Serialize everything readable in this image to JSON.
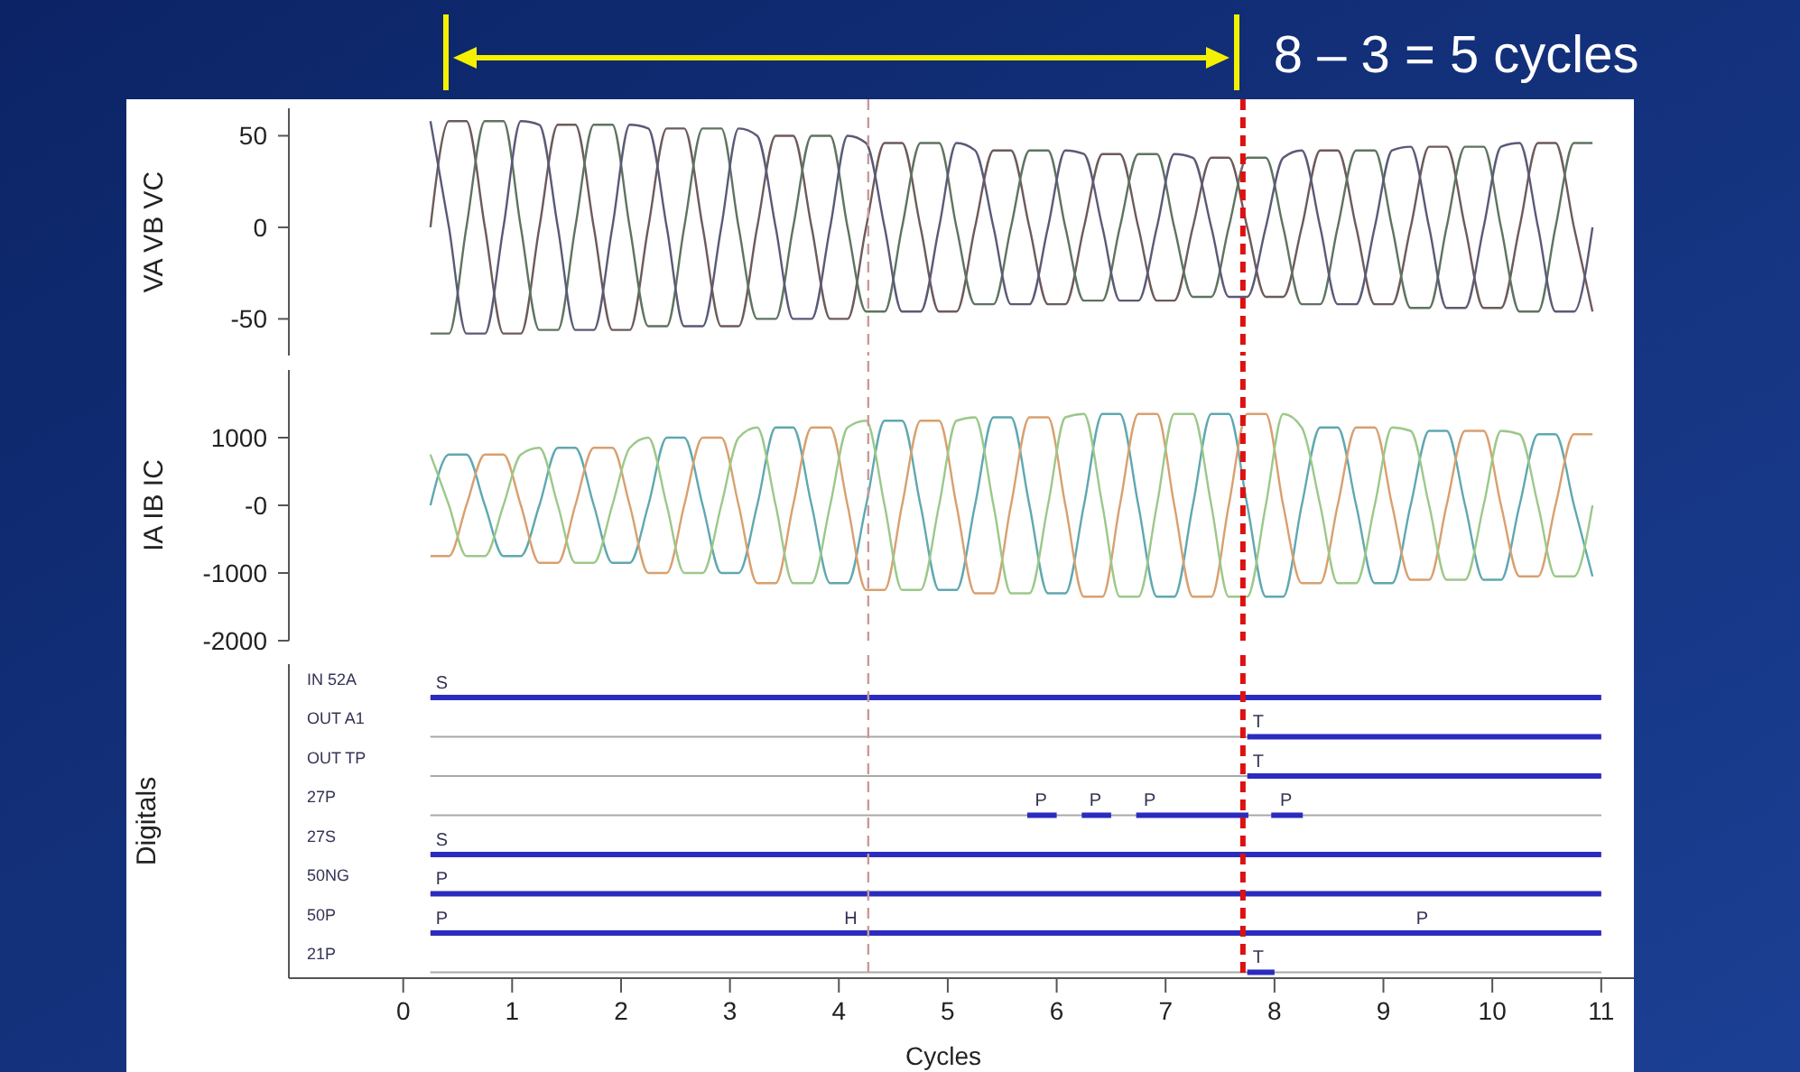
{
  "chart_data": [
    {
      "type": "line",
      "ylabel": "VA VB VC",
      "annotations": [
        "8 – 3 = 5 cycles"
      ],
      "xlim": [
        -1.05,
        11.3
      ],
      "ylim": [
        -70,
        65
      ],
      "yticks": [
        50,
        0,
        -50
      ],
      "tick_labels": "y",
      "ref_lines": [
        {
          "axis": "x",
          "value": 4.27,
          "color": "#c89a9a",
          "line_style": "dashed"
        },
        {
          "axis": "x",
          "value": 7.71,
          "color": "#dd1111",
          "line_style": "dashed"
        }
      ],
      "x": [
        0.25,
        0.42,
        0.58,
        0.75,
        0.92,
        1.08,
        1.25,
        1.42,
        1.58,
        1.75,
        1.92,
        2.08,
        2.25,
        2.42,
        2.58,
        2.75,
        2.92,
        3.08,
        3.25,
        3.42,
        3.58,
        3.75,
        3.92,
        4.08,
        4.25,
        4.42,
        4.58,
        4.75,
        4.92,
        5.08,
        5.25,
        5.42,
        5.58,
        5.75,
        5.92,
        6.08,
        6.25,
        6.42,
        6.58,
        6.75,
        6.92,
        7.08,
        7.25,
        7.42,
        7.58,
        7.75,
        7.92,
        8.08,
        8.25,
        8.42,
        8.58,
        8.75,
        8.92,
        9.08,
        9.25,
        9.42,
        9.58,
        9.75,
        9.92,
        10.08,
        10.25,
        10.42,
        10.58,
        10.75,
        10.92
      ],
      "series": [
        {
          "color": "#6e5a5a",
          "values": [
            0,
            58,
            58,
            0,
            -58,
            -58,
            0,
            56,
            56,
            0,
            -56,
            -56,
            0,
            54,
            54,
            0,
            -54,
            -54,
            0,
            50,
            50,
            0,
            -50,
            -50,
            0,
            46,
            46,
            0,
            -46,
            -46,
            0,
            42,
            42,
            0,
            -42,
            -42,
            0,
            40,
            40,
            0,
            -40,
            -40,
            0,
            38,
            38,
            0,
            -38,
            -38,
            0,
            42,
            42,
            0,
            -42,
            -42,
            0,
            44,
            44,
            0,
            -44,
            -44,
            0,
            46,
            46,
            0,
            -46
          ]
        },
        {
          "color": "#5e7460",
          "values": [
            -58,
            -58,
            0,
            58,
            58,
            0,
            -56,
            -56,
            0,
            56,
            56,
            0,
            -54,
            -54,
            0,
            54,
            54,
            0,
            -50,
            -50,
            0,
            50,
            50,
            0,
            -46,
            -46,
            0,
            46,
            46,
            0,
            -42,
            -42,
            0,
            42,
            42,
            0,
            -40,
            -40,
            0,
            40,
            40,
            0,
            -38,
            -38,
            0,
            38,
            38,
            0,
            -42,
            -42,
            0,
            42,
            42,
            0,
            -44,
            -44,
            0,
            44,
            44,
            0,
            -46,
            -46,
            0,
            46,
            46
          ]
        },
        {
          "color": "#5a5a78",
          "values": [
            58,
            0,
            -58,
            -58,
            0,
            58,
            56,
            0,
            -56,
            -56,
            0,
            56,
            54,
            0,
            -54,
            -54,
            0,
            54,
            50,
            0,
            -50,
            -50,
            0,
            50,
            46,
            0,
            -46,
            -46,
            0,
            46,
            42,
            0,
            -42,
            -42,
            0,
            42,
            40,
            0,
            -40,
            -40,
            0,
            40,
            38,
            0,
            -38,
            -38,
            0,
            38,
            42,
            0,
            -42,
            -42,
            0,
            42,
            44,
            0,
            -44,
            -44,
            0,
            44,
            46,
            0,
            -46,
            -46,
            0
          ]
        }
      ]
    },
    {
      "type": "line",
      "ylabel": "IA IB IC",
      "xlim": [
        -1.05,
        11.3
      ],
      "ylim": [
        -2000,
        2000
      ],
      "yticks": [
        1000,
        {
          "value": 0,
          "label": "-0"
        },
        -1000,
        -2000
      ],
      "tick_labels": "y",
      "ref_lines": [
        {
          "axis": "x",
          "value": 4.27,
          "color": "#c89a9a",
          "line_style": "dashed"
        },
        {
          "axis": "x",
          "value": 7.71,
          "color": "#dd1111",
          "line_style": "dashed"
        }
      ],
      "x": [
        0.25,
        0.42,
        0.58,
        0.75,
        0.92,
        1.08,
        1.25,
        1.42,
        1.58,
        1.75,
        1.92,
        2.08,
        2.25,
        2.42,
        2.58,
        2.75,
        2.92,
        3.08,
        3.25,
        3.42,
        3.58,
        3.75,
        3.92,
        4.08,
        4.25,
        4.42,
        4.58,
        4.75,
        4.92,
        5.08,
        5.25,
        5.42,
        5.58,
        5.75,
        5.92,
        6.08,
        6.25,
        6.42,
        6.58,
        6.75,
        6.92,
        7.08,
        7.25,
        7.42,
        7.58,
        7.75,
        7.92,
        8.08,
        8.25,
        8.42,
        8.58,
        8.75,
        8.92,
        9.08,
        9.25,
        9.42,
        9.58,
        9.75,
        9.92,
        10.08,
        10.25,
        10.42,
        10.58,
        10.75,
        10.92
      ],
      "series": [
        {
          "color": "#5fa8b0",
          "values": [
            0,
            750,
            750,
            0,
            -750,
            -750,
            0,
            850,
            850,
            0,
            -850,
            -850,
            0,
            1000,
            1000,
            0,
            -1000,
            -1000,
            0,
            1150,
            1150,
            0,
            -1150,
            -1150,
            0,
            1250,
            1250,
            0,
            -1250,
            -1250,
            0,
            1300,
            1300,
            0,
            -1300,
            -1300,
            0,
            1350,
            1350,
            0,
            -1350,
            -1350,
            0,
            1350,
            1350,
            0,
            -1350,
            -1350,
            0,
            1150,
            1150,
            0,
            -1150,
            -1150,
            0,
            1100,
            1100,
            0,
            -1100,
            -1100,
            0,
            1050,
            1050,
            0,
            -1050
          ]
        },
        {
          "color": "#d8a070",
          "values": [
            -750,
            -750,
            0,
            750,
            750,
            0,
            -850,
            -850,
            0,
            850,
            850,
            0,
            -1000,
            -1000,
            0,
            1000,
            1000,
            0,
            -1150,
            -1150,
            0,
            1150,
            1150,
            0,
            -1250,
            -1250,
            0,
            1250,
            1250,
            0,
            -1300,
            -1300,
            0,
            1300,
            1300,
            0,
            -1350,
            -1350,
            0,
            1350,
            1350,
            0,
            -1350,
            -1350,
            0,
            1350,
            1350,
            0,
            -1150,
            -1150,
            0,
            1150,
            1150,
            0,
            -1100,
            -1100,
            0,
            1100,
            1100,
            0,
            -1050,
            -1050,
            0,
            1050,
            1050
          ]
        },
        {
          "color": "#9cc88a",
          "values": [
            750,
            0,
            -750,
            -750,
            0,
            750,
            850,
            0,
            -850,
            -850,
            0,
            850,
            1000,
            0,
            -1000,
            -1000,
            0,
            1000,
            1150,
            0,
            -1150,
            -1150,
            0,
            1150,
            1250,
            0,
            -1250,
            -1250,
            0,
            1250,
            1300,
            0,
            -1300,
            -1300,
            0,
            1300,
            1350,
            0,
            -1350,
            -1350,
            0,
            1350,
            1350,
            0,
            -1350,
            -1350,
            0,
            1350,
            1150,
            0,
            -1150,
            -1150,
            0,
            1150,
            1100,
            0,
            -1100,
            -1100,
            0,
            1100,
            1050,
            0,
            -1050,
            -1050,
            0
          ]
        }
      ]
    },
    {
      "type": "bar",
      "orientation": "horizontal",
      "ylabel": "Digitals",
      "xlabel": "Cycles",
      "grid": "y",
      "categories": [
        "IN 52A",
        "OUT A1",
        "OUT TP",
        "27P",
        "27S",
        "50NG",
        "50P",
        "21P"
      ],
      "xlim": [
        -1.05,
        11.3
      ],
      "xticks": [
        0,
        1,
        2,
        3,
        4,
        5,
        6,
        7,
        8,
        9,
        10,
        11
      ],
      "ref_lines": [
        {
          "axis": "x",
          "value": 4.27,
          "color": "#c89a9a",
          "line_style": "dashed"
        },
        {
          "axis": "x",
          "value": 7.71,
          "color": "#dd1111",
          "line_style": "dashed"
        }
      ],
      "series": [
        {
          "color": "#2b2bbf",
          "base": [
            0.25,
            7.75,
            7.75,
            5.73,
            0.25,
            0.25,
            0.25,
            7.75
          ],
          "values": [
            10.75,
            3.25,
            3.25,
            0.27,
            10.75,
            10.75,
            10.75,
            0.25
          ]
        },
        {
          "color": "#2b2bbf",
          "base": [
            null,
            null,
            null,
            6.23,
            null,
            null,
            null,
            null
          ],
          "values": [
            null,
            null,
            null,
            0.27,
            null,
            null,
            null,
            null
          ]
        },
        {
          "color": "#2b2bbf",
          "base": [
            null,
            null,
            null,
            6.73,
            null,
            null,
            null,
            null
          ],
          "values": [
            null,
            null,
            null,
            1.03,
            null,
            null,
            null,
            null
          ]
        },
        {
          "color": "#2b2bbf",
          "base": [
            null,
            null,
            null,
            7.97,
            null,
            null,
            null,
            null
          ],
          "values": [
            null,
            null,
            null,
            0.29,
            null,
            null,
            null,
            null
          ]
        }
      ],
      "annotations": [
        {
          "text": "S",
          "x": 0.3,
          "y": "IN 52A"
        },
        {
          "text": "T",
          "x": 7.8,
          "y": "OUT A1"
        },
        {
          "text": "T",
          "x": 7.8,
          "y": "OUT TP"
        },
        {
          "text": "P",
          "x": 5.8,
          "y": "27P"
        },
        {
          "text": "P",
          "x": 6.3,
          "y": "27P"
        },
        {
          "text": "P",
          "x": 6.8,
          "y": "27P"
        },
        {
          "text": "P",
          "x": 8.05,
          "y": "27P"
        },
        {
          "text": "S",
          "x": 0.3,
          "y": "27S"
        },
        {
          "text": "P",
          "x": 0.3,
          "y": "50NG"
        },
        {
          "text": "P",
          "x": 0.3,
          "y": "50P"
        },
        {
          "text": "H",
          "x": 4.05,
          "y": "50P"
        },
        {
          "text": "P",
          "x": 9.3,
          "y": "50P"
        },
        {
          "text": "T",
          "x": 7.8,
          "y": "21P"
        }
      ]
    }
  ]
}
